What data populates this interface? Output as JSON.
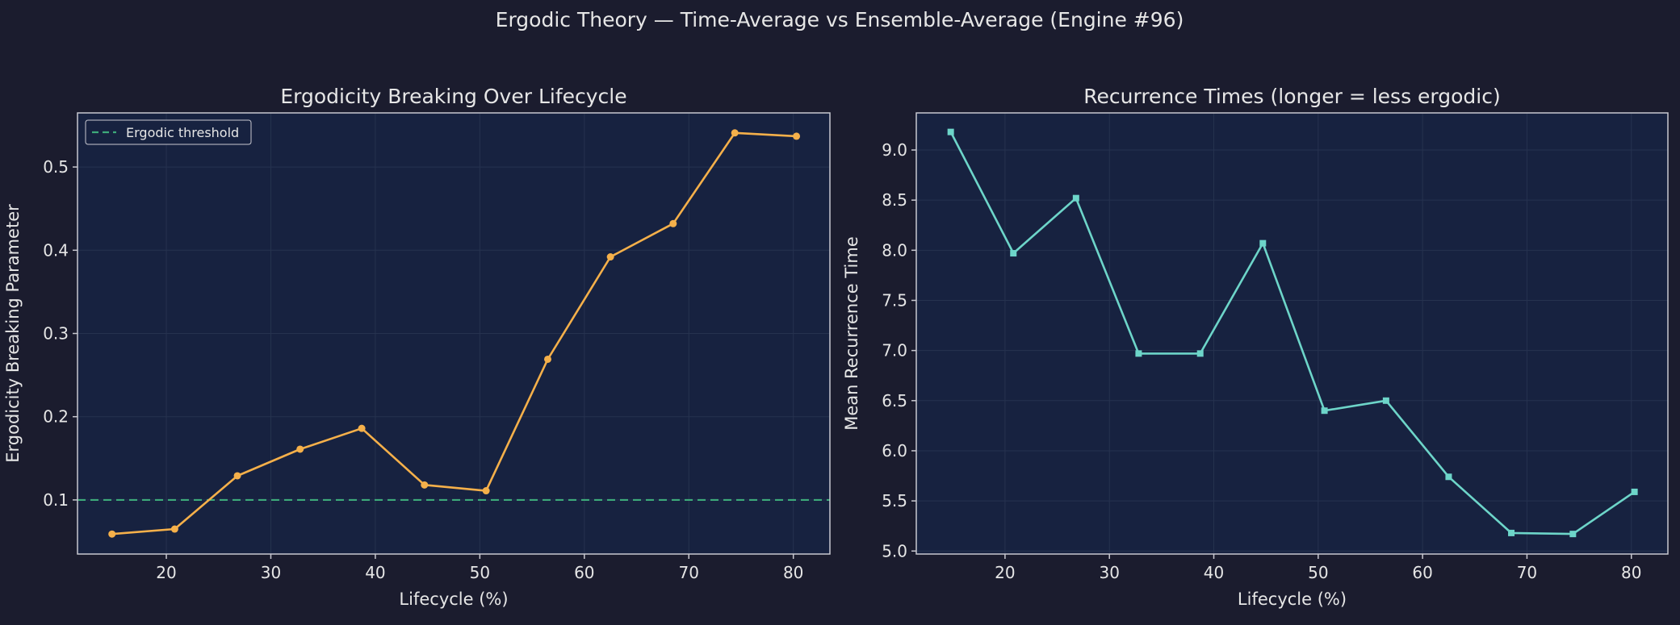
{
  "suptitle": "Ergodic Theory — Time-Average vs Ensemble-Average (Engine #96)",
  "colors": {
    "background": "#1b1c2e",
    "plot_area": "#172240",
    "text": "#e6e6e6",
    "grid": "#26324f",
    "spine": "#c8c8d0",
    "series_left": "#f5b04a",
    "series_right": "#6dd5c9",
    "threshold": "#3daa7a"
  },
  "chart_data": [
    {
      "type": "line",
      "title": "Ergodicity Breaking Over Lifecycle",
      "xlabel": "Lifecycle (%)",
      "ylabel": "Ergodicity Breaking Parameter",
      "xlim": [
        11.5,
        83.5
      ],
      "ylim": [
        0.035,
        0.565
      ],
      "xticks": [
        20,
        30,
        40,
        50,
        60,
        70,
        80
      ],
      "yticks": [
        0.1,
        0.2,
        0.3,
        0.4,
        0.5
      ],
      "grid": true,
      "legend": {
        "placement": "upper-left",
        "entries": [
          "Ergodic threshold"
        ]
      },
      "series": [
        {
          "marker": "circle",
          "x": [
            14.8,
            20.8,
            26.8,
            32.8,
            38.7,
            44.7,
            50.6,
            56.5,
            62.5,
            68.5,
            74.4,
            80.3
          ],
          "values": [
            0.059,
            0.065,
            0.129,
            0.161,
            0.186,
            0.118,
            0.111,
            0.269,
            0.392,
            0.432,
            0.541,
            0.537
          ]
        }
      ],
      "reference_lines": [
        {
          "name": "Ergodic threshold",
          "y": 0.1,
          "style": "dashed"
        }
      ]
    },
    {
      "type": "line",
      "title": "Recurrence Times (longer = less ergodic)",
      "xlabel": "Lifecycle (%)",
      "ylabel": "Mean Recurrence Time",
      "xlim": [
        11.5,
        83.5
      ],
      "ylim": [
        4.97,
        9.37
      ],
      "xticks": [
        20,
        30,
        40,
        50,
        60,
        70,
        80
      ],
      "yticks": [
        5.0,
        5.5,
        6.0,
        6.5,
        7.0,
        7.5,
        8.0,
        8.5,
        9.0
      ],
      "grid": true,
      "series": [
        {
          "marker": "square",
          "x": [
            14.8,
            20.8,
            26.8,
            32.8,
            38.7,
            44.7,
            50.6,
            56.5,
            62.5,
            68.5,
            74.4,
            80.3
          ],
          "values": [
            9.18,
            7.97,
            8.52,
            6.97,
            6.97,
            8.07,
            6.4,
            6.5,
            5.74,
            5.18,
            5.17,
            5.59
          ]
        }
      ]
    }
  ]
}
